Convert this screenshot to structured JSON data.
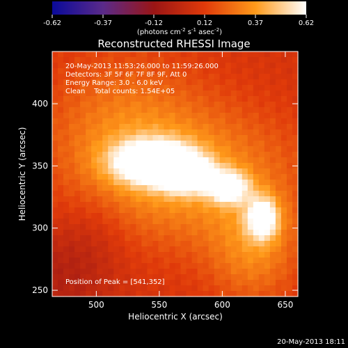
{
  "chart_data": {
    "type": "heatmap",
    "title": "Reconstructed RHESSI Image",
    "xlabel": "Heliocentric X (arcsec)",
    "ylabel": "Heliocentric Y (arcsec)",
    "xlim": [
      465,
      660
    ],
    "ylim": [
      245,
      442
    ],
    "x_ticks": [
      500,
      550,
      600,
      650
    ],
    "y_ticks": [
      250,
      300,
      350,
      400
    ],
    "colorbar": {
      "label": "(photons cm",
      "label_sup1": "-2",
      "label_mid": " s",
      "label_sup2": "-1",
      "label_mid2": " asec",
      "label_sup3": "-2",
      "label_end": ")",
      "ticks": [
        "-0.62",
        "-0.37",
        "-0.12",
        "0.12",
        "0.37",
        "0.62"
      ],
      "range": [
        -0.62,
        0.62
      ],
      "stops": [
        "#0a0a9a",
        "#5a2a8a",
        "#9a1515",
        "#e03a0a",
        "#ff9a1a",
        "#ffffff"
      ]
    },
    "annotations": [
      "20-May-2013 11:53:26.000 to 11:59:26.000",
      "Detectors: 3F 5F 6F 7F 8F 9F, Att 0",
      "Energy Range: 3.0 - 6.0 keV",
      "Clean    Total counts: 1.54E+05"
    ],
    "peak_text": "Position of Peak = [541,352]",
    "sources": [
      {
        "x": 545,
        "y": 353,
        "sx": 22,
        "sy": 12,
        "amp": 0.62
      },
      {
        "x": 572,
        "y": 343,
        "sx": 14,
        "sy": 10,
        "amp": 0.5
      },
      {
        "x": 605,
        "y": 333,
        "sx": 11,
        "sy": 9,
        "amp": 0.5
      },
      {
        "x": 632,
        "y": 308,
        "sx": 9,
        "sy": 12,
        "amp": 0.5
      },
      {
        "x": 580,
        "y": 340,
        "sx": 60,
        "sy": 40,
        "amp": 0.25
      },
      {
        "x": 520,
        "y": 380,
        "sx": 45,
        "sy": 45,
        "amp": 0.18
      },
      {
        "x": 625,
        "y": 280,
        "sx": 25,
        "sy": 30,
        "amp": 0.2
      },
      {
        "x": 470,
        "y": 260,
        "sx": 30,
        "sy": 30,
        "amp": -0.12
      },
      {
        "x": 500,
        "y": 300,
        "sx": 20,
        "sy": 25,
        "amp": -0.06
      }
    ],
    "baseline": 0.08
  },
  "footer_timestamp": "20-May-2013 18:11"
}
